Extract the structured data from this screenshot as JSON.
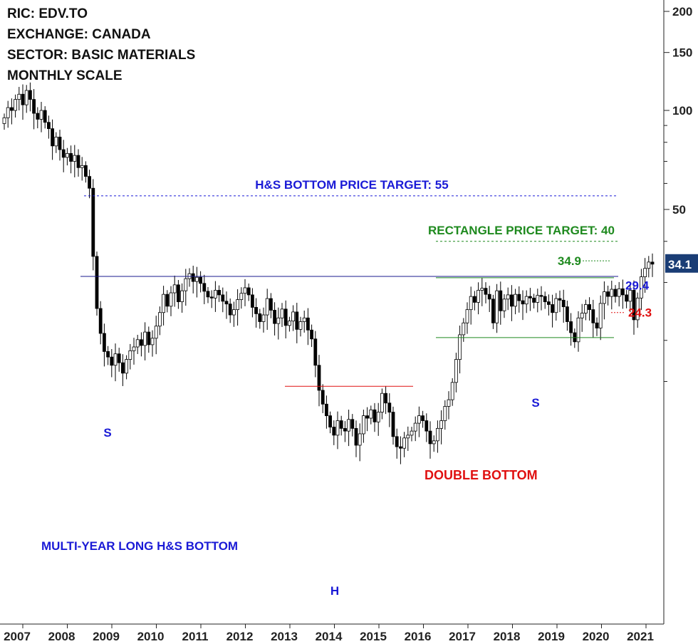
{
  "header": {
    "ric": "RIC: EDV.TO",
    "exchange": "EXCHANGE: CANADA",
    "sector": "SECTOR: BASIC MATERIALS",
    "scale": "MONTHLY SCALE"
  },
  "chart_data": {
    "type": "candlestick",
    "y_scale": "log",
    "ylim": [
      9,
      210
    ],
    "y_ticks": [
      {
        "value": 200,
        "label": "200"
      },
      {
        "value": 150,
        "label": "150"
      },
      {
        "value": 100,
        "label": "100"
      },
      {
        "value": 50,
        "label": "50"
      }
    ],
    "x_ticks": [
      "2007",
      "2008",
      "2009",
      "2010",
      "2011",
      "2012",
      "2013",
      "2014",
      "2015",
      "2016",
      "2017",
      "2018",
      "2019",
      "2020",
      "2021"
    ],
    "last_price": {
      "value": 34.1,
      "label": "34.1",
      "color": "#1a3d75"
    },
    "annotations": {
      "hs_target": {
        "label": "H&S BOTTOM PRICE TARGET: 55",
        "value": 55,
        "color": "#1a1ad6"
      },
      "rect_target": {
        "label": "RECTANGLE PRICE TARGET: 40",
        "value": 40,
        "color": "#1f8a1f"
      },
      "level_349": {
        "label": "34.9",
        "value": 34.9,
        "color": "#1f8a1f"
      },
      "level_294": {
        "label": "29.4",
        "value": 29.4,
        "color": "#1a1ad6"
      },
      "level_243": {
        "label": "24.3",
        "value": 24.3,
        "color": "#e01010"
      },
      "neckline": {
        "value": 31.3
      },
      "rect_top": {
        "value": 31.0
      },
      "rect_bottom": {
        "value": 20.4
      },
      "double_bottom_level": {
        "value": 14.5
      },
      "double_bottom": {
        "label": "DOUBLE BOTTOM",
        "color": "#e01010"
      },
      "multi_year": {
        "label": "MULTI-YEAR LONG H&S BOTTOM",
        "color": "#1a1ad6"
      },
      "left_s": {
        "label": "S"
      },
      "head": {
        "label": "H"
      },
      "right_s": {
        "label": "S"
      }
    },
    "closes": [
      95,
      102,
      100,
      108,
      112,
      104,
      115,
      108,
      98,
      94,
      100,
      92,
      88,
      78,
      83,
      76,
      72,
      74,
      70,
      73,
      67,
      68,
      63,
      58,
      36,
      25,
      21,
      18.5,
      17.8,
      16.8,
      18.2,
      17.1,
      15.9,
      17.5,
      18.6,
      19.1,
      20.1,
      19.3,
      21.2,
      19.4,
      20.3,
      22.1,
      24.3,
      27.6,
      25.4,
      27.9,
      29.5,
      26.2,
      28.3,
      30.8,
      31.9,
      30.2,
      31.1,
      29.8,
      28.2,
      27.1,
      26.9,
      28.4,
      27.5,
      26.3,
      25.8,
      23.9,
      24.8,
      26.6,
      27.8,
      28.9,
      27.5,
      25.2,
      24.1,
      22.8,
      23.9,
      26.8,
      24.7,
      22.5,
      23.4,
      24.9,
      22.2,
      22.9,
      24.4,
      21.6,
      22.8,
      23.4,
      21.5,
      20.2,
      16.8,
      14.1,
      12.8,
      11.8,
      10.9,
      10.3,
      11.4,
      10.8,
      10.6,
      11.5,
      10.8,
      9.6,
      10.4,
      11.8,
      11.6,
      12.3,
      11.3,
      12.1,
      13.8,
      12.9,
      12.1,
      10.2,
      9.5,
      9.4,
      10.1,
      10.3,
      10.6,
      11.2,
      11.8,
      11.4,
      10.6,
      9.7,
      9.9,
      10.8,
      11.4,
      12.6,
      13.2,
      14.9,
      17.5,
      20.8,
      22.6,
      24.8,
      27.2,
      26.1,
      28.4,
      28.8,
      27.6,
      26.7,
      22.6,
      28.3,
      24.6,
      26.7,
      27.5,
      25.4,
      27.6,
      26.4,
      25.8,
      27.2,
      26.9,
      26.1,
      27.4,
      27.2,
      26.2,
      25.7,
      24.3,
      26.8,
      26.5,
      25.3,
      22.8,
      21.1,
      19.8,
      23.4,
      24.2,
      25.7,
      24.8,
      22.6,
      21.8,
      25.9,
      28.1,
      27.2,
      28.6,
      27.2,
      28.7,
      27.5,
      26.3,
      28.4,
      23.1,
      26.9,
      31.2,
      33.1,
      34.6,
      34.1
    ]
  }
}
